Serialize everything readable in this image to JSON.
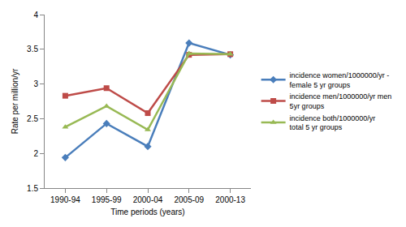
{
  "chart_data": {
    "type": "line",
    "x_label": "Time periods (years)",
    "y_label": "Rate per million/yr",
    "categories": [
      "1990-94",
      "1995-99",
      "2000-04",
      "2005-09",
      "2000-13"
    ],
    "series": [
      {
        "name": "incidence women/1000000/yr - female 5 yr groups",
        "color": "#4a7ebb",
        "marker": "diamond",
        "values": [
          1.94,
          2.43,
          2.1,
          3.59,
          3.42
        ]
      },
      {
        "name": "incidence men/1000000/yr men 5yr groups",
        "color": "#be4b48",
        "marker": "square",
        "values": [
          2.83,
          2.94,
          2.58,
          3.42,
          3.43
        ]
      },
      {
        "name": "incidence both/1000000/yr total 5 yr groups",
        "color": "#98b954",
        "marker": "triangle",
        "values": [
          2.38,
          2.68,
          2.34,
          3.44,
          3.43
        ]
      }
    ],
    "ylim": [
      1.5,
      4
    ],
    "yticks": [
      1.5,
      2,
      2.5,
      3,
      3.5,
      4
    ],
    "grid": false,
    "legend": "right"
  }
}
